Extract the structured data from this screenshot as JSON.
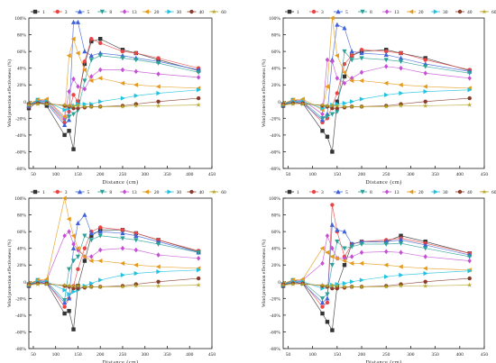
{
  "chart_data": [
    {
      "type": "line",
      "xlabel": "Distance (cm)",
      "ylabel": "Wind protection effectiveness (%)",
      "xlim": [
        40,
        450
      ],
      "ylim": [
        -80,
        100
      ],
      "xticks": [
        "50",
        "100",
        "150",
        "200",
        "250",
        "300",
        "350",
        "400",
        "450"
      ],
      "yticks": [
        "-80%",
        "-60%",
        "-40%",
        "-20%",
        "0",
        "20%",
        "40%",
        "60%",
        "80%",
        "100%"
      ],
      "legend_placement": "top",
      "x": [
        40,
        60,
        80,
        120,
        130,
        140,
        150,
        165,
        180,
        200,
        250,
        280,
        330,
        420
      ],
      "series": [
        {
          "name": "1",
          "color": "#333333",
          "marker": "square",
          "values": [
            -8,
            0,
            -5,
            -40,
            -35,
            -57,
            0,
            45,
            72,
            75,
            62,
            58,
            50,
            37
          ]
        },
        {
          "name": "3",
          "color": "#e84646",
          "marker": "circle",
          "values": [
            -6,
            2,
            0,
            -25,
            -12,
            8,
            0,
            48,
            75,
            70,
            60,
            58,
            52,
            40
          ]
        },
        {
          "name": "5",
          "color": "#3f62d8",
          "marker": "triangle",
          "values": [
            -5,
            0,
            -2,
            -28,
            -22,
            95,
            95,
            60,
            55,
            58,
            55,
            52,
            48,
            38
          ]
        },
        {
          "name": "8",
          "color": "#2aa198",
          "marker": "tri-down",
          "values": [
            -4,
            2,
            0,
            -22,
            -18,
            -15,
            -10,
            25,
            50,
            55,
            52,
            50,
            46,
            35
          ]
        },
        {
          "name": "13",
          "color": "#c44fd4",
          "marker": "diamond",
          "values": [
            -3,
            0,
            2,
            -20,
            12,
            27,
            18,
            15,
            30,
            38,
            38,
            36,
            33,
            29
          ]
        },
        {
          "name": "20",
          "color": "#e59a1a",
          "marker": "left",
          "values": [
            -2,
            2,
            3,
            -18,
            55,
            75,
            58,
            38,
            25,
            28,
            22,
            20,
            18,
            16
          ]
        },
        {
          "name": "30",
          "color": "#1fc2e0",
          "marker": "right",
          "values": [
            -3,
            0,
            0,
            -10,
            -8,
            -5,
            -3,
            -3,
            -3,
            0,
            4,
            7,
            10,
            14
          ]
        },
        {
          "name": "40",
          "color": "#8a3b2a",
          "marker": "circle",
          "values": [
            -3,
            -2,
            -2,
            -5,
            -6,
            -8,
            -8,
            -7,
            -6,
            -6,
            -5,
            -3,
            0,
            4
          ]
        },
        {
          "name": "60",
          "color": "#b5a523",
          "marker": "star",
          "values": [
            -4,
            -3,
            -3,
            -4,
            -5,
            -5,
            -5,
            -6,
            -6,
            -6,
            -6,
            -5,
            -5,
            -4
          ]
        }
      ]
    },
    {
      "type": "line",
      "xlabel": "Distance (cm)",
      "ylabel": "Wind protection effectiveness (%)",
      "xlim": [
        40,
        450
      ],
      "ylim": [
        -80,
        100
      ],
      "xticks": [
        "50",
        "100",
        "150",
        "200",
        "250",
        "300",
        "350",
        "400",
        "450"
      ],
      "yticks": [
        "-80%",
        "-60%",
        "-40%",
        "-20%",
        "0",
        "20%",
        "40%",
        "60%",
        "80%",
        "100%"
      ],
      "legend_placement": "top",
      "x": [
        40,
        60,
        80,
        120,
        130,
        140,
        150,
        165,
        180,
        200,
        250,
        280,
        330,
        420
      ],
      "series": [
        {
          "name": "1",
          "color": "#333333",
          "marker": "square",
          "values": [
            -5,
            0,
            -2,
            -35,
            -42,
            -60,
            0,
            30,
            55,
            60,
            62,
            58,
            52,
            37
          ]
        },
        {
          "name": "3",
          "color": "#e84646",
          "marker": "circle",
          "values": [
            -4,
            2,
            0,
            -25,
            -20,
            -5,
            10,
            45,
            55,
            62,
            60,
            58,
            50,
            38
          ]
        },
        {
          "name": "5",
          "color": "#3f62d8",
          "marker": "triangle",
          "values": [
            -4,
            0,
            -2,
            -22,
            -15,
            50,
            92,
            88,
            60,
            58,
            56,
            52,
            45,
            36
          ]
        },
        {
          "name": "8",
          "color": "#2aa198",
          "marker": "tri-down",
          "values": [
            -3,
            2,
            0,
            -20,
            -18,
            -15,
            -12,
            60,
            50,
            52,
            50,
            48,
            42,
            34
          ]
        },
        {
          "name": "13",
          "color": "#c44fd4",
          "marker": "diamond",
          "values": [
            -3,
            0,
            2,
            -15,
            50,
            48,
            28,
            22,
            28,
            35,
            42,
            40,
            34,
            28
          ]
        },
        {
          "name": "20",
          "color": "#e59a1a",
          "marker": "left",
          "values": [
            -2,
            2,
            3,
            -10,
            18,
            100,
            55,
            35,
            25,
            25,
            22,
            20,
            18,
            16
          ]
        },
        {
          "name": "30",
          "color": "#1fc2e0",
          "marker": "right",
          "values": [
            -3,
            0,
            0,
            -8,
            -6,
            -4,
            -3,
            -2,
            0,
            3,
            8,
            10,
            12,
            14
          ]
        },
        {
          "name": "40",
          "color": "#8a3b2a",
          "marker": "circle",
          "values": [
            -3,
            -2,
            -2,
            -5,
            -6,
            -8,
            -8,
            -7,
            -6,
            -6,
            -5,
            -3,
            0,
            4
          ]
        },
        {
          "name": "60",
          "color": "#b5a523",
          "marker": "star",
          "values": [
            -4,
            -3,
            -3,
            -4,
            -5,
            -5,
            -5,
            -6,
            -6,
            -6,
            -6,
            -5,
            -5,
            -4
          ]
        }
      ]
    },
    {
      "type": "line",
      "xlabel": "Distance (cm)",
      "ylabel": "Wind protection effectiveness (%)",
      "xlim": [
        40,
        450
      ],
      "ylim": [
        -80,
        100
      ],
      "xticks": [
        "50",
        "100",
        "150",
        "200",
        "250",
        "300",
        "350",
        "400",
        "450"
      ],
      "yticks": [
        "-80%",
        "-60%",
        "-40%",
        "-20%",
        "0",
        "20%",
        "40%",
        "60%",
        "80%",
        "100%"
      ],
      "legend_placement": "top",
      "x": [
        40,
        60,
        80,
        120,
        130,
        140,
        150,
        165,
        180,
        200,
        250,
        280,
        330,
        420
      ],
      "series": [
        {
          "name": "1",
          "color": "#333333",
          "marker": "square",
          "values": [
            -5,
            0,
            -2,
            -38,
            -35,
            -57,
            -5,
            25,
            55,
            62,
            62,
            58,
            50,
            36
          ]
        },
        {
          "name": "3",
          "color": "#e84646",
          "marker": "circle",
          "values": [
            -4,
            2,
            0,
            -30,
            -20,
            -5,
            15,
            40,
            60,
            65,
            62,
            58,
            50,
            37
          ]
        },
        {
          "name": "5",
          "color": "#3f62d8",
          "marker": "triangle",
          "values": [
            -4,
            0,
            -2,
            -25,
            -20,
            40,
            70,
            80,
            58,
            60,
            58,
            55,
            48,
            35
          ]
        },
        {
          "name": "8",
          "color": "#2aa198",
          "marker": "tri-down",
          "values": [
            -3,
            2,
            0,
            -22,
            15,
            25,
            30,
            55,
            50,
            55,
            52,
            50,
            45,
            35
          ]
        },
        {
          "name": "13",
          "color": "#c44fd4",
          "marker": "diamond",
          "values": [
            -3,
            0,
            2,
            55,
            60,
            45,
            38,
            30,
            30,
            38,
            40,
            38,
            32,
            28
          ]
        },
        {
          "name": "20",
          "color": "#e59a1a",
          "marker": "left",
          "values": [
            -2,
            2,
            3,
            100,
            75,
            55,
            40,
            30,
            25,
            25,
            22,
            20,
            18,
            16
          ]
        },
        {
          "name": "30",
          "color": "#1fc2e0",
          "marker": "right",
          "values": [
            -3,
            0,
            0,
            -10,
            -15,
            -12,
            -10,
            -5,
            -2,
            2,
            8,
            10,
            12,
            14
          ]
        },
        {
          "name": "40",
          "color": "#8a3b2a",
          "marker": "circle",
          "values": [
            -3,
            -2,
            -2,
            -5,
            -6,
            -8,
            -8,
            -7,
            -6,
            -6,
            -5,
            -3,
            0,
            4
          ]
        },
        {
          "name": "60",
          "color": "#b5a523",
          "marker": "star",
          "values": [
            -4,
            -3,
            -3,
            -4,
            -5,
            -5,
            -5,
            -6,
            -6,
            -6,
            -6,
            -5,
            -5,
            -4
          ]
        }
      ]
    },
    {
      "type": "line",
      "xlabel": "Distance (cm)",
      "ylabel": "Wind protection effectiveness (%)",
      "xlim": [
        40,
        450
      ],
      "ylim": [
        -80,
        100
      ],
      "xticks": [
        "50",
        "100",
        "150",
        "200",
        "250",
        "300",
        "350",
        "400",
        "450"
      ],
      "yticks": [
        "-80%",
        "-60%",
        "-40%",
        "-20%",
        "0",
        "20%",
        "40%",
        "60%",
        "80%",
        "100%"
      ],
      "legend_placement": "top",
      "x": [
        40,
        60,
        80,
        120,
        130,
        140,
        150,
        165,
        180,
        200,
        250,
        280,
        330,
        420
      ],
      "series": [
        {
          "name": "1",
          "color": "#333333",
          "marker": "square",
          "values": [
            -5,
            0,
            -2,
            -38,
            -48,
            -58,
            -5,
            20,
            45,
            48,
            48,
            55,
            48,
            34
          ]
        },
        {
          "name": "3",
          "color": "#e84646",
          "marker": "circle",
          "values": [
            -4,
            2,
            0,
            -30,
            -25,
            92,
            60,
            30,
            45,
            48,
            50,
            52,
            46,
            34
          ]
        },
        {
          "name": "5",
          "color": "#3f62d8",
          "marker": "triangle",
          "values": [
            -4,
            0,
            -2,
            -25,
            -20,
            68,
            62,
            60,
            45,
            48,
            48,
            50,
            44,
            32
          ]
        },
        {
          "name": "8",
          "color": "#2aa198",
          "marker": "tri-down",
          "values": [
            -3,
            2,
            0,
            -20,
            -15,
            20,
            48,
            40,
            42,
            45,
            45,
            46,
            40,
            30
          ]
        },
        {
          "name": "13",
          "color": "#c44fd4",
          "marker": "diamond",
          "values": [
            -3,
            0,
            2,
            22,
            55,
            40,
            28,
            28,
            30,
            35,
            36,
            35,
            30,
            25
          ]
        },
        {
          "name": "20",
          "color": "#e59a1a",
          "marker": "left",
          "values": [
            -2,
            2,
            3,
            40,
            35,
            30,
            28,
            25,
            22,
            22,
            20,
            18,
            16,
            14
          ]
        },
        {
          "name": "30",
          "color": "#1fc2e0",
          "marker": "right",
          "values": [
            -3,
            0,
            0,
            -8,
            -6,
            -4,
            -3,
            -2,
            0,
            2,
            6,
            8,
            10,
            13
          ]
        },
        {
          "name": "40",
          "color": "#8a3b2a",
          "marker": "circle",
          "values": [
            -3,
            -2,
            -2,
            -5,
            -6,
            -8,
            -8,
            -7,
            -6,
            -6,
            -5,
            -3,
            0,
            4
          ]
        },
        {
          "name": "60",
          "color": "#b5a523",
          "marker": "star",
          "values": [
            -4,
            -3,
            -3,
            -4,
            -5,
            -5,
            -5,
            -6,
            -6,
            -6,
            -6,
            -5,
            -5,
            -4
          ]
        }
      ]
    }
  ]
}
